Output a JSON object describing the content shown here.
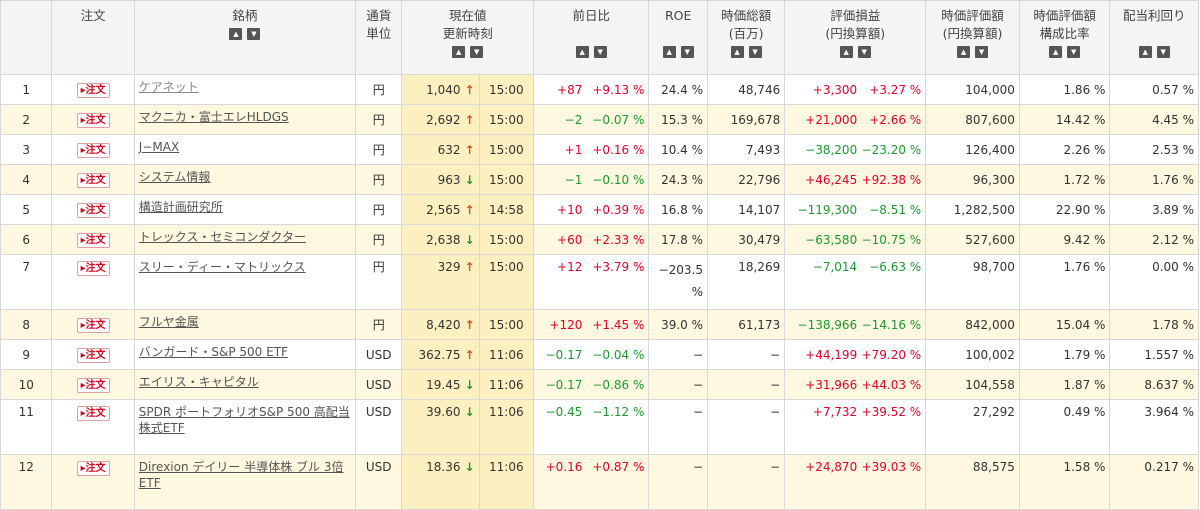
{
  "headers": {
    "no": "",
    "order": "注文",
    "name": "銘柄",
    "currency_l1": "通貨",
    "currency_l2": "単位",
    "price_l1": "現在値",
    "price_l2": "更新時刻",
    "change": "前日比",
    "roe": "ROE",
    "mcap_l1": "時価総額",
    "mcap_l2": "(百万)",
    "pl_l1": "評価損益",
    "pl_l2": "(円換算額)",
    "value_l1": "時価評価額",
    "value_l2": "(円換算額)",
    "ratio_l1": "時価評価額",
    "ratio_l2": "構成比率",
    "yield": "配当利回り"
  },
  "sort_up": "▲",
  "sort_down": "▼",
  "order_label": "▸注文",
  "rows": [
    {
      "no": "1",
      "name": "ケアネット",
      "visited": true,
      "cur": "円",
      "price": "1,040",
      "dir": "up",
      "time": "15:00",
      "chg": "+87",
      "chgp": "+9.13 %",
      "roe": "24.4 %",
      "mcap": "48,746",
      "pl": "+3,300",
      "plp": "+3.27 %",
      "value": "104,000",
      "ratio": "1.86 %",
      "yield": "0.57 %"
    },
    {
      "no": "2",
      "name": "マクニカ・富士エレHLDGS",
      "cur": "円",
      "price": "2,692",
      "dir": "up",
      "time": "15:00",
      "chg": "−2",
      "chgp": "−0.07 %",
      "roe": "15.3 %",
      "mcap": "169,678",
      "pl": "+21,000",
      "plp": "+2.66 %",
      "value": "807,600",
      "ratio": "14.42 %",
      "yield": "4.45 %"
    },
    {
      "no": "3",
      "name": "J−MAX",
      "cur": "円",
      "price": "632",
      "dir": "up",
      "time": "15:00",
      "chg": "+1",
      "chgp": "+0.16 %",
      "roe": "10.4 %",
      "mcap": "7,493",
      "pl": "−38,200",
      "plp": "−23.20 %",
      "value": "126,400",
      "ratio": "2.26 %",
      "yield": "2.53 %"
    },
    {
      "no": "4",
      "name": "システム情報",
      "cur": "円",
      "price": "963",
      "dir": "down",
      "time": "15:00",
      "chg": "−1",
      "chgp": "−0.10 %",
      "roe": "24.3 %",
      "mcap": "22,796",
      "pl": "+46,245",
      "plp": "+92.38 %",
      "value": "96,300",
      "ratio": "1.72 %",
      "yield": "1.76 %"
    },
    {
      "no": "5",
      "name": "構造計画研究所",
      "cur": "円",
      "price": "2,565",
      "dir": "up",
      "time": "14:58",
      "chg": "+10",
      "chgp": "+0.39 %",
      "roe": "16.8 %",
      "mcap": "14,107",
      "pl": "−119,300",
      "plp": "−8.51 %",
      "value": "1,282,500",
      "ratio": "22.90 %",
      "yield": "3.89 %"
    },
    {
      "no": "6",
      "name": "トレックス・セミコンダクター",
      "cur": "円",
      "price": "2,638",
      "dir": "down",
      "time": "15:00",
      "chg": "+60",
      "chgp": "+2.33 %",
      "roe": "17.8 %",
      "mcap": "30,479",
      "pl": "−63,580",
      "plp": "−10.75 %",
      "value": "527,600",
      "ratio": "9.42 %",
      "yield": "2.12 %"
    },
    {
      "no": "7",
      "name": "スリー・ディー・マトリックス",
      "cur": "円",
      "price": "329",
      "dir": "up",
      "time": "15:00",
      "chg": "+12",
      "chgp": "+3.79 %",
      "roe": "−203.5 %",
      "mcap": "18,269",
      "pl": "−7,014",
      "plp": "−6.63 %",
      "value": "98,700",
      "ratio": "1.76 %",
      "yield": "0.00 %",
      "tall": true
    },
    {
      "no": "8",
      "name": "フルヤ金属",
      "cur": "円",
      "price": "8,420",
      "dir": "up",
      "time": "15:00",
      "chg": "+120",
      "chgp": "+1.45 %",
      "roe": "39.0 %",
      "mcap": "61,173",
      "pl": "−138,966",
      "plp": "−14.16 %",
      "value": "842,000",
      "ratio": "15.04 %",
      "yield": "1.78 %"
    },
    {
      "no": "9",
      "name": "バンガード・S&P 500 ETF",
      "cur": "USD",
      "price": "362.75",
      "dir": "up",
      "time": "11:06",
      "chg": "−0.17",
      "chgp": "−0.04 %",
      "roe": "−",
      "mcap": "−",
      "pl": "+44,199",
      "plp": "+79.20 %",
      "value": "100,002",
      "ratio": "1.79 %",
      "yield": "1.557 %"
    },
    {
      "no": "10",
      "name": "エイリス・キャピタル",
      "cur": "USD",
      "price": "19.45",
      "dir": "down",
      "time": "11:06",
      "chg": "−0.17",
      "chgp": "−0.86 %",
      "roe": "−",
      "mcap": "−",
      "pl": "+31,966",
      "plp": "+44.03 %",
      "value": "104,558",
      "ratio": "1.87 %",
      "yield": "8.637 %"
    },
    {
      "no": "11",
      "name": "SPDR ポートフォリオS&P 500 高配当株式ETF",
      "cur": "USD",
      "price": "39.60",
      "dir": "down",
      "time": "11:06",
      "chg": "−0.45",
      "chgp": "−1.12 %",
      "roe": "−",
      "mcap": "−",
      "pl": "+7,732",
      "plp": "+39.52 %",
      "value": "27,292",
      "ratio": "0.49 %",
      "yield": "3.964 %",
      "tall": true
    },
    {
      "no": "12",
      "name": "Direxion デイリー 半導体株 ブル 3倍 ETF",
      "cur": "USD",
      "price": "18.36",
      "dir": "down",
      "time": "11:06",
      "chg": "+0.16",
      "chgp": "+0.87 %",
      "roe": "−",
      "mcap": "−",
      "pl": "+24,870",
      "plp": "+39.03 %",
      "value": "88,575",
      "ratio": "1.58 %",
      "yield": "0.217 %",
      "tall": true
    }
  ],
  "colors": {
    "positive": "#e5002a",
    "negative": "#1a9b2e",
    "row_alt": "#fdf8df",
    "price_bg": "#fdf0c0"
  },
  "icons": {
    "up": "↑",
    "down": "↓"
  }
}
